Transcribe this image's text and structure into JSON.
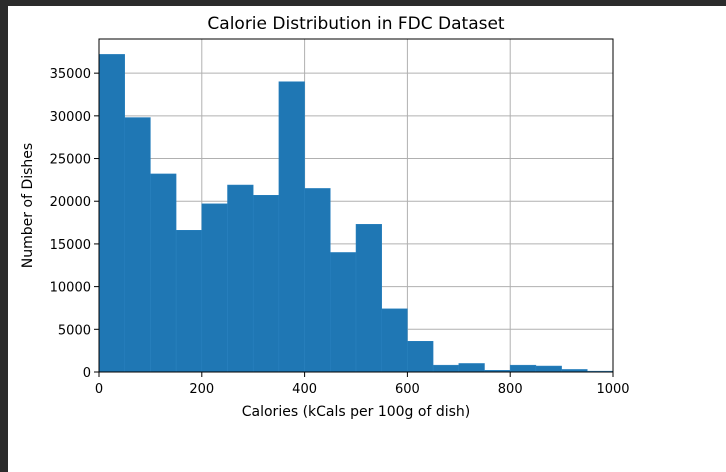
{
  "chart_data": {
    "type": "bar",
    "title": "Calorie Distribution in FDC Dataset",
    "xlabel": "Calories (kCals per 100g of dish)",
    "ylabel": "Number of Dishes",
    "xlim": [
      0,
      1000
    ],
    "ylim": [
      0,
      39000
    ],
    "xticks": [
      0,
      200,
      400,
      600,
      800,
      1000
    ],
    "yticks": [
      0,
      5000,
      10000,
      15000,
      20000,
      25000,
      30000,
      35000
    ],
    "grid": true,
    "bar_color": "#1f77b4",
    "bin_edges": [
      0,
      50,
      100,
      150,
      200,
      250,
      300,
      350,
      400,
      450,
      500,
      550,
      600,
      650,
      700,
      750,
      800,
      850,
      900,
      950,
      1000
    ],
    "values": [
      37200,
      29800,
      23200,
      16600,
      19700,
      21900,
      20700,
      34000,
      21500,
      14000,
      17300,
      7400,
      3600,
      800,
      1000,
      200,
      800,
      700,
      300,
      100
    ]
  }
}
